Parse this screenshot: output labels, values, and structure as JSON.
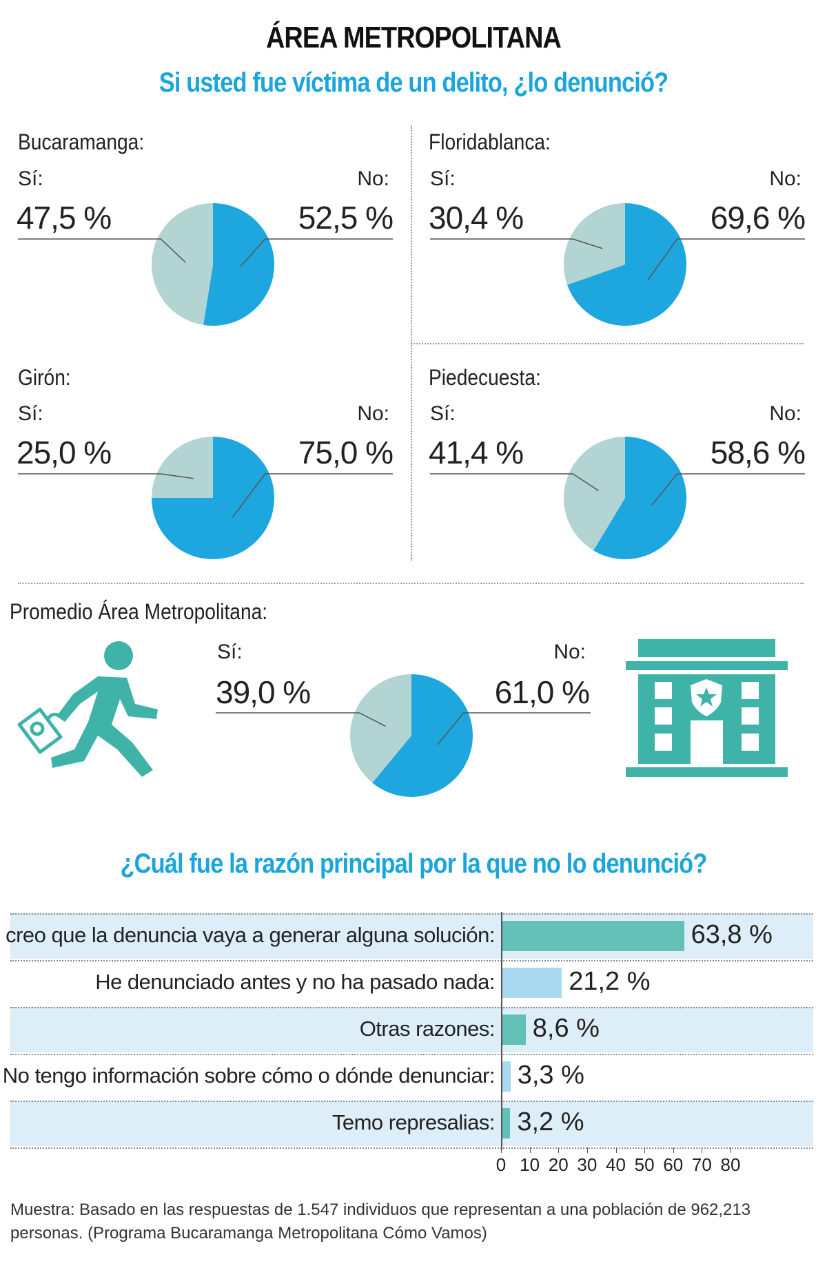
{
  "header": {
    "title": "ÁREA METROPOLITANA",
    "subtitle": "Si usted fue víctima de un delito, ¿lo denunció?"
  },
  "labels": {
    "si": "Sí:",
    "no": "No:"
  },
  "cities": [
    {
      "name": "Bucaramanga:",
      "si": "47,5 %",
      "no": "52,5 %",
      "si_value": 47.5,
      "no_value": 52.5
    },
    {
      "name": "Floridablanca:",
      "si": "30,4 %",
      "no": "69,6 %",
      "si_value": 30.4,
      "no_value": 69.6
    },
    {
      "name": "Girón:",
      "si": "25,0 %",
      "no": "75,0 %",
      "si_value": 25.0,
      "no_value": 75.0
    },
    {
      "name": "Piedecuesta:",
      "si": "41,4 %",
      "no": "58,6 %",
      "si_value": 41.4,
      "no_value": 58.6
    }
  ],
  "average": {
    "name": "Promedio Área Metropolitana:",
    "si": "39,0 %",
    "no": "61,0 %",
    "si_value": 39.0,
    "no_value": 61.0
  },
  "icons": {
    "runner": "running-person-with-bag-icon",
    "police": "police-station-building-icon"
  },
  "colors": {
    "si": "#b2d5d4",
    "no": "#1ea7de",
    "teal": "#3fb3a8",
    "bar_primary": "#62c0b6",
    "bar_secondary": "#a9d9f1",
    "band": "#ddeef8"
  },
  "bar_section": {
    "title": "¿Cuál fue la razón principal por la que no lo denunció?"
  },
  "chart_data": [
    {
      "type": "pie",
      "title": "Bucaramanga:",
      "categories": [
        "Sí",
        "No"
      ],
      "values": [
        47.5,
        52.5
      ]
    },
    {
      "type": "pie",
      "title": "Floridablanca:",
      "categories": [
        "Sí",
        "No"
      ],
      "values": [
        30.4,
        69.6
      ]
    },
    {
      "type": "pie",
      "title": "Girón:",
      "categories": [
        "Sí",
        "No"
      ],
      "values": [
        25.0,
        75.0
      ]
    },
    {
      "type": "pie",
      "title": "Piedecuesta:",
      "categories": [
        "Sí",
        "No"
      ],
      "values": [
        41.4,
        58.6
      ]
    },
    {
      "type": "pie",
      "title": "Promedio Área Metropolitana:",
      "categories": [
        "Sí",
        "No"
      ],
      "values": [
        39.0,
        61.0
      ]
    },
    {
      "type": "bar",
      "orientation": "horizontal",
      "title": "¿Cuál fue la razón principal por la que no lo denunció?",
      "categories": [
        "No creo que la denuncia vaya a generar alguna solución:",
        "He denunciado antes y no ha pasado nada:",
        "Otras razones:",
        "No tengo información sobre cómo o dónde denunciar:",
        "Temo represalias:"
      ],
      "values": [
        63.8,
        21.2,
        8.6,
        3.3,
        3.2
      ],
      "value_labels": [
        "63,8 %",
        "21,2 %",
        "8,6 %",
        "3,3 %",
        "3,2 %"
      ],
      "xlim": [
        0,
        80
      ],
      "xticks": [
        "0",
        "10",
        "20",
        "30",
        "40",
        "50",
        "60",
        "70",
        "80"
      ]
    }
  ],
  "footnote": "Muestra: Basado en las respuestas de 1.547 individuos que representan a una población de 962,213 personas. (Programa Bucaramanga Metropolitana Cómo Vamos)"
}
